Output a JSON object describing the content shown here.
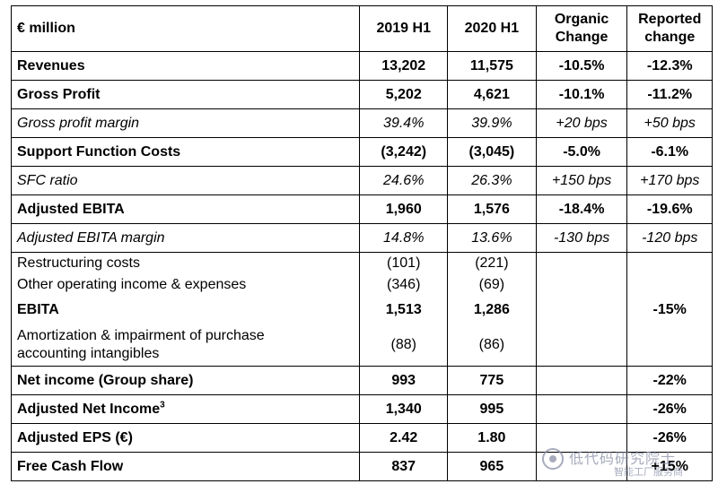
{
  "header": {
    "label": "€ million",
    "col1": "2019 H1",
    "col2": "2020 H1",
    "col3_line1": "Organic",
    "col3_line2": "Change",
    "col4_line1": "Reported",
    "col4_line2": "change"
  },
  "rows": [
    {
      "label": "Revenues",
      "y2019": "13,202",
      "y2020": "11,575",
      "organic": "-10.5%",
      "reported": "-12.3%"
    },
    {
      "label": "Gross Profit",
      "y2019": "5,202",
      "y2020": "4,621",
      "organic": "-10.1%",
      "reported": "-11.2%"
    },
    {
      "label": "Gross profit margin",
      "y2019": "39.4%",
      "y2020": "39.9%",
      "organic": "+20 bps",
      "reported": "+50 bps"
    },
    {
      "label": "Support Function Costs",
      "y2019": "(3,242)",
      "y2020": "(3,045)",
      "organic": "-5.0%",
      "reported": "-6.1%"
    },
    {
      "label": "SFC ratio",
      "y2019": "24.6%",
      "y2020": "26.3%",
      "organic": "+150 bps",
      "reported": "+170 bps"
    },
    {
      "label": "Adjusted EBITA",
      "y2019": "1,960",
      "y2020": "1,576",
      "organic": "-18.4%",
      "reported": "-19.6%"
    },
    {
      "label": "Adjusted EBITA margin",
      "y2019": "14.8%",
      "y2020": "13.6%",
      "organic": "-130 bps",
      "reported": "-120 bps"
    },
    {
      "label": "Restructuring costs",
      "y2019": "(101)",
      "y2020": "(221)",
      "organic": "",
      "reported": ""
    },
    {
      "label": "Other operating income & expenses",
      "y2019": "(346)",
      "y2020": "(69)",
      "organic": "",
      "reported": ""
    },
    {
      "label": "EBITA",
      "y2019": "1,513",
      "y2020": "1,286",
      "organic": "",
      "reported": "-15%"
    },
    {
      "label_line1": "Amortization & impairment of purchase",
      "label_line2": "accounting intangibles",
      "y2019": "(88)",
      "y2020": "(86)",
      "organic": "",
      "reported": ""
    },
    {
      "label": "Net income (Group share)",
      "y2019": "993",
      "y2020": "775",
      "organic": "",
      "reported": "-22%"
    },
    {
      "label": "Adjusted Net Income",
      "label_sup": "3",
      "y2019": "1,340",
      "y2020": "995",
      "organic": "",
      "reported": "-26%"
    },
    {
      "label": "Adjusted EPS (€)",
      "y2019": "2.42",
      "y2020": "1.80",
      "organic": "",
      "reported": "-26%"
    },
    {
      "label": "Free Cash Flow",
      "y2019": "837",
      "y2020": "965",
      "organic": "",
      "reported": "+15%"
    }
  ],
  "watermark": {
    "name": "低代码研究院士",
    "sub": "智能工厂服务商"
  }
}
